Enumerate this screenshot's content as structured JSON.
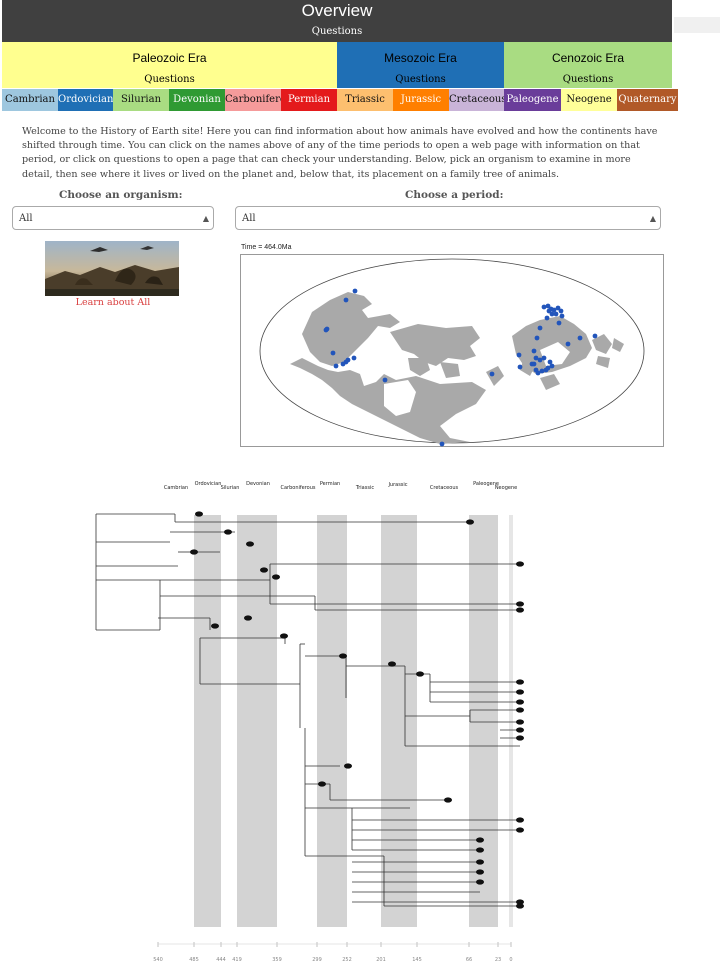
{
  "header": {
    "title": "Overview",
    "questions": "Questions"
  },
  "eras": [
    {
      "name": "Paleozoic Era",
      "questions": "Questions",
      "color": "#ffff8f",
      "text": "#111"
    },
    {
      "name": "Mesozoic Era",
      "questions": "Questions",
      "color": "#1f6fb5",
      "text": "#111"
    },
    {
      "name": "Cenozoic Era",
      "questions": "Questions",
      "color": "#a9dc82",
      "text": "#111"
    }
  ],
  "periods": [
    {
      "name": "Cambrian",
      "color": "#9ec7df",
      "text": "#111"
    },
    {
      "name": "Ordovician",
      "color": "#1f6fb5",
      "text": "#fff"
    },
    {
      "name": "Silurian",
      "color": "#a9dc82",
      "text": "#111"
    },
    {
      "name": "Devonian",
      "color": "#2f9a33",
      "text": "#fff"
    },
    {
      "name": "Carboniferous",
      "color": "#f59b9b",
      "text": "#111"
    },
    {
      "name": "Permian",
      "color": "#e41a1c",
      "text": "#fff"
    },
    {
      "name": "Triassic",
      "color": "#fdbf6f",
      "text": "#111"
    },
    {
      "name": "Jurassic",
      "color": "#ff7f00",
      "text": "#fff"
    },
    {
      "name": "Cretaceous",
      "color": "#c9b4d8",
      "text": "#111"
    },
    {
      "name": "Paleogene",
      "color": "#6a3d9a",
      "text": "#fff"
    },
    {
      "name": "Neogene",
      "color": "#ffff99",
      "text": "#111"
    },
    {
      "name": "Quaternary",
      "color": "#b15928",
      "text": "#fff"
    }
  ],
  "intro": "Welcome to the History of Earth site! Here you can find information about how animals have evolved and how the continents have shifted through time. You can click on the names above of any of the time periods to open a web page with information on that period, or click on questions to open a page that can check your understanding. Below, pick an organism to examine in more detail, then see where it lives or lived on the planet and, below that, its placement on a family tree of animals.",
  "organism": {
    "label": "Choose an organism:",
    "value": "All"
  },
  "period_select": {
    "label": "Choose a period:",
    "value": "All"
  },
  "learn_link": "Learn about All",
  "map": {
    "time_label": "Time = 464.0Ma",
    "point_color": "#2255bb"
  },
  "tree": {
    "periods": [
      "Cambrian",
      "Ordovician",
      "Silurian",
      "Devonian",
      "Carboniferous",
      "Permian",
      "Triassic",
      "Jurassic",
      "Cretaceous",
      "Paleogene",
      "Neogene"
    ],
    "ages": [
      "540",
      "485",
      "444",
      "419",
      "359",
      "299",
      "252",
      "201",
      "145",
      "66",
      "23",
      "0"
    ]
  }
}
